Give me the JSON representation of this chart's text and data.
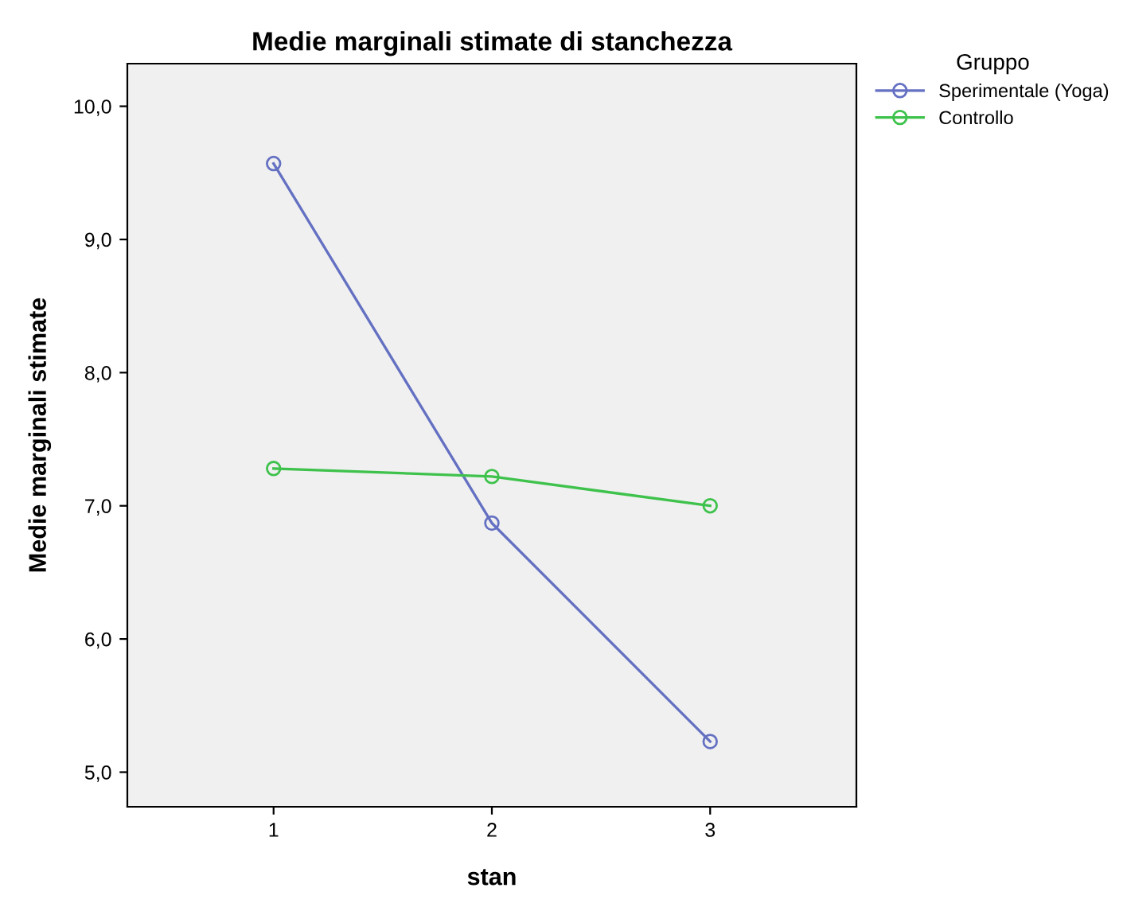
{
  "chart_data": {
    "type": "line",
    "title": "Medie marginali stimate di stanchezza",
    "xlabel": "stan",
    "ylabel": "Medie marginali stimate",
    "legend_title": "Gruppo",
    "x": [
      1,
      2,
      3
    ],
    "series": [
      {
        "name": "Sperimentale (Yoga)",
        "color": "#6470c2",
        "values": [
          9.57,
          6.87,
          5.23
        ]
      },
      {
        "name": "Controllo",
        "color": "#3ec24c",
        "values": [
          7.28,
          7.22,
          7.0
        ]
      }
    ],
    "xlim": [
      0.33,
      3.67
    ],
    "xticks": [
      1,
      2,
      3
    ],
    "ylim": [
      4.74,
      10.32
    ],
    "yticks": [
      {
        "value": 5,
        "label": "5,0"
      },
      {
        "value": 6,
        "label": "6,0"
      },
      {
        "value": 7,
        "label": "7,0"
      },
      {
        "value": 8,
        "label": "8,0"
      },
      {
        "value": 9,
        "label": "9,0"
      },
      {
        "value": 10,
        "label": "10,0"
      }
    ],
    "grid": false,
    "legend": "top right",
    "marker": "circle",
    "line_style": "solid"
  }
}
